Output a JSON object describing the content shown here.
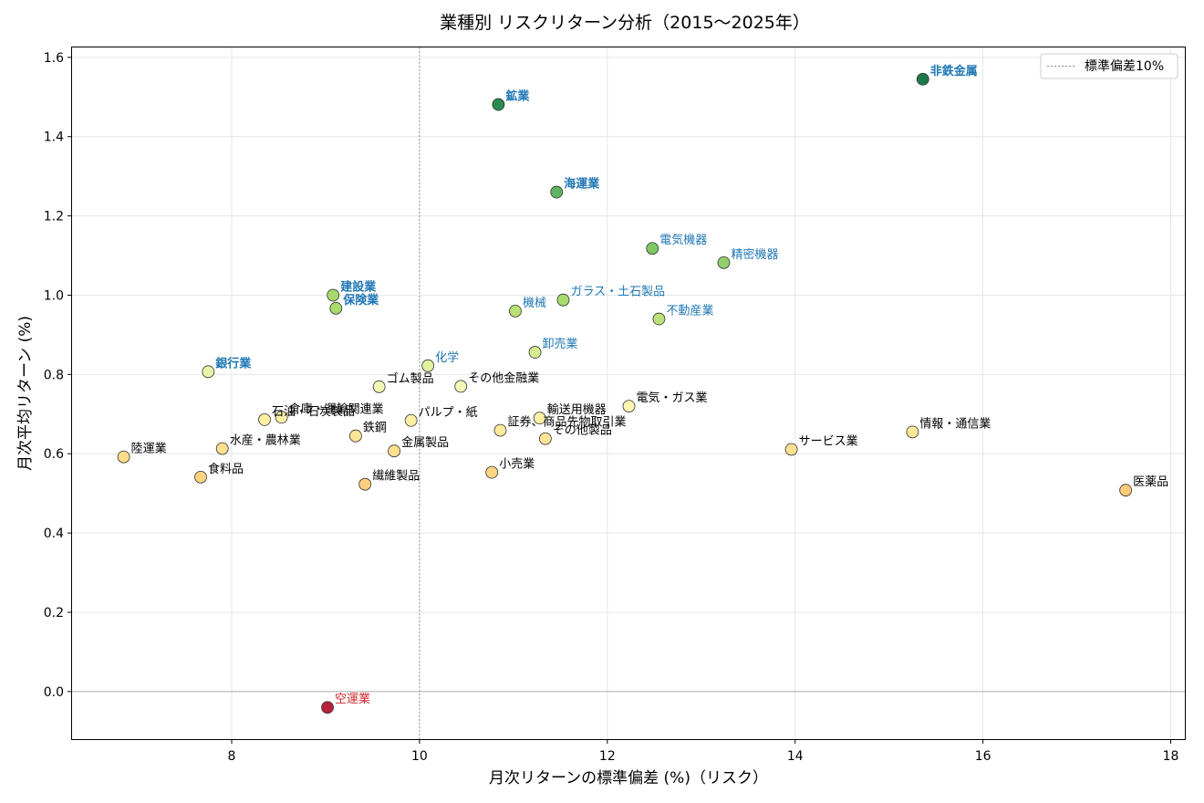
{
  "chart_data": {
    "type": "scatter",
    "title": "業種別 リスクリターン分析（2015〜2025年）",
    "xlabel": "月次リターンの標準偏差 (%)（リスク）",
    "ylabel": "月次平均リターン (%)",
    "xlim": [
      6.3,
      18.15
    ],
    "ylim": [
      -0.12,
      1.625
    ],
    "xticks": [
      8,
      10,
      12,
      14,
      16,
      18
    ],
    "yticks": [
      0.0,
      0.2,
      0.4,
      0.6,
      0.8,
      1.0,
      1.2,
      1.4,
      1.6
    ],
    "grid": true,
    "legend": {
      "position": "top-right",
      "entries": [
        {
          "label": "標準偏差10%",
          "style": "dotted-line",
          "color": "#888888"
        }
      ]
    },
    "reference_lines": {
      "vertical_x": 10,
      "horizontal_y": 0
    },
    "colors": {
      "label_highlight": "#1f77b4",
      "label_negative": "#d62728",
      "label_default": "#000000"
    },
    "points": [
      {
        "name": "非鉄金属",
        "x": 15.36,
        "y": 1.545,
        "color": "#1e7a4a",
        "label_color": "#1f77b4",
        "bold": true
      },
      {
        "name": "鉱業",
        "x": 10.84,
        "y": 1.481,
        "color": "#2a8a50",
        "label_color": "#1f77b4",
        "bold": true
      },
      {
        "name": "海運業",
        "x": 11.46,
        "y": 1.26,
        "color": "#5fb560",
        "label_color": "#1f77b4",
        "bold": true
      },
      {
        "name": "電気機器",
        "x": 12.48,
        "y": 1.118,
        "color": "#7fc864",
        "label_color": "#1f77b4",
        "bold": false
      },
      {
        "name": "精密機器",
        "x": 13.24,
        "y": 1.082,
        "color": "#92cf6a",
        "label_color": "#1f77b4",
        "bold": false
      },
      {
        "name": "建設業",
        "x": 9.08,
        "y": 1.0,
        "color": "#a6d96a",
        "label_color": "#1f77b4",
        "bold": true
      },
      {
        "name": "保険業",
        "x": 9.11,
        "y": 0.967,
        "color": "#a9da6c",
        "label_color": "#1f77b4",
        "bold": true
      },
      {
        "name": "ガラス・土石製品",
        "x": 11.53,
        "y": 0.988,
        "color": "#aadb6d",
        "label_color": "#1f77b4",
        "bold": false
      },
      {
        "name": "機械",
        "x": 11.02,
        "y": 0.96,
        "color": "#b7e075",
        "label_color": "#1f77b4",
        "bold": false
      },
      {
        "name": "不動産業",
        "x": 12.55,
        "y": 0.94,
        "color": "#bbe278",
        "label_color": "#1f77b4",
        "bold": false
      },
      {
        "name": "卸売業",
        "x": 11.23,
        "y": 0.856,
        "color": "#d3ec8f",
        "label_color": "#1f77b4",
        "bold": false
      },
      {
        "name": "化学",
        "x": 10.09,
        "y": 0.822,
        "color": "#e1f2a0",
        "label_color": "#1f77b4",
        "bold": false
      },
      {
        "name": "銀行業",
        "x": 7.75,
        "y": 0.807,
        "color": "#e8f5a8",
        "label_color": "#1f77b4",
        "bold": true
      },
      {
        "name": "ゴム製品",
        "x": 9.57,
        "y": 0.769,
        "color": "#f4f9b8",
        "label_color": "#000000",
        "bold": false
      },
      {
        "name": "その他金融業",
        "x": 10.44,
        "y": 0.77,
        "color": "#f4f9b8",
        "label_color": "#000000",
        "bold": false
      },
      {
        "name": "電気・ガス業",
        "x": 12.23,
        "y": 0.72,
        "color": "#fdf7b2",
        "label_color": "#000000",
        "bold": false
      },
      {
        "name": "倉庫・運輸関連業",
        "x": 8.53,
        "y": 0.692,
        "color": "#fef0a6",
        "label_color": "#000000",
        "bold": false
      },
      {
        "name": "石油・石炭製品",
        "x": 8.35,
        "y": 0.686,
        "color": "#feeea2",
        "label_color": "#000000",
        "bold": false
      },
      {
        "name": "パルプ・紙",
        "x": 9.91,
        "y": 0.684,
        "color": "#feeea2",
        "label_color": "#000000",
        "bold": false
      },
      {
        "name": "輸送用機器",
        "x": 11.28,
        "y": 0.69,
        "color": "#feefa4",
        "label_color": "#000000",
        "bold": false
      },
      {
        "name": "証券、商品先物取引業",
        "x": 10.86,
        "y": 0.659,
        "color": "#fee99c",
        "label_color": "#000000",
        "bold": false
      },
      {
        "name": "情報・通信業",
        "x": 15.25,
        "y": 0.655,
        "color": "#fee89a",
        "label_color": "#000000",
        "bold": false
      },
      {
        "name": "鉄鋼",
        "x": 9.32,
        "y": 0.645,
        "color": "#fee698",
        "label_color": "#000000",
        "bold": false
      },
      {
        "name": "その他製品",
        "x": 11.34,
        "y": 0.638,
        "color": "#fee596",
        "label_color": "#000000",
        "bold": false
      },
      {
        "name": "水産・農林業",
        "x": 7.9,
        "y": 0.613,
        "color": "#fee090",
        "label_color": "#000000",
        "bold": false
      },
      {
        "name": "サービス業",
        "x": 13.96,
        "y": 0.611,
        "color": "#fee090",
        "label_color": "#000000",
        "bold": false
      },
      {
        "name": "金属製品",
        "x": 9.73,
        "y": 0.607,
        "color": "#fedf8e",
        "label_color": "#000000",
        "bold": false
      },
      {
        "name": "陸運業",
        "x": 6.85,
        "y": 0.592,
        "color": "#fedc8a",
        "label_color": "#000000",
        "bold": false
      },
      {
        "name": "小売業",
        "x": 10.77,
        "y": 0.553,
        "color": "#fdd584",
        "label_color": "#000000",
        "bold": false
      },
      {
        "name": "食料品",
        "x": 7.67,
        "y": 0.541,
        "color": "#fdd382",
        "label_color": "#000000",
        "bold": false
      },
      {
        "name": "繊維製品",
        "x": 9.42,
        "y": 0.523,
        "color": "#fdcf7e",
        "label_color": "#000000",
        "bold": false
      },
      {
        "name": "医薬品",
        "x": 17.52,
        "y": 0.508,
        "color": "#fdcb7a",
        "label_color": "#000000",
        "bold": false
      },
      {
        "name": "空運業",
        "x": 9.02,
        "y": -0.04,
        "color": "#b5213d",
        "label_color": "#d62728",
        "bold": false
      }
    ]
  }
}
